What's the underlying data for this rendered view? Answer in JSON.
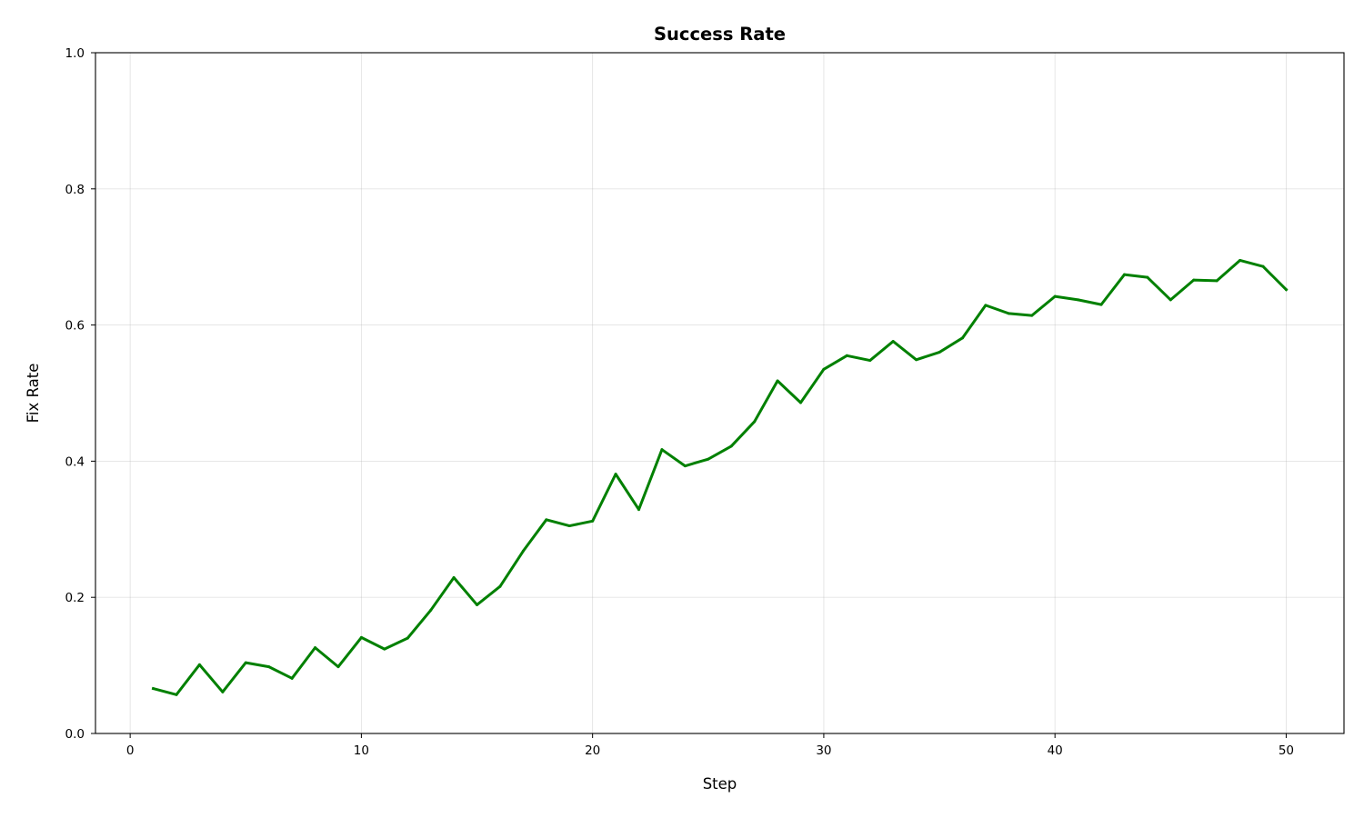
{
  "chart_data": {
    "type": "line",
    "title": "Success Rate",
    "xlabel": "Step",
    "ylabel": "Fix Rate",
    "xlim": [
      -1.5,
      52.5
    ],
    "ylim": [
      0.0,
      1.0
    ],
    "xticks": [
      0,
      10,
      20,
      30,
      40,
      50
    ],
    "xtick_labels": [
      "0",
      "10",
      "20",
      "30",
      "40",
      "50"
    ],
    "yticks": [
      0.0,
      0.2,
      0.4,
      0.6,
      0.8,
      1.0
    ],
    "ytick_labels": [
      "0.0",
      "0.2",
      "0.4",
      "0.6",
      "0.8",
      "1.0"
    ],
    "grid": true,
    "series": [
      {
        "color": "#008000",
        "x": [
          1,
          2,
          3,
          4,
          5,
          6,
          7,
          8,
          9,
          10,
          11,
          12,
          13,
          14,
          15,
          16,
          17,
          18,
          19,
          20,
          21,
          22,
          23,
          24,
          25,
          26,
          27,
          28,
          29,
          30,
          31,
          32,
          33,
          34,
          35,
          36,
          37,
          38,
          39,
          40,
          41,
          42,
          43,
          44,
          45,
          46,
          47,
          48,
          49,
          50
        ],
        "y": [
          0.066,
          0.057,
          0.101,
          0.061,
          0.104,
          0.098,
          0.081,
          0.126,
          0.098,
          0.141,
          0.124,
          0.14,
          0.181,
          0.229,
          0.189,
          0.216,
          0.268,
          0.314,
          0.305,
          0.312,
          0.381,
          0.329,
          0.417,
          0.393,
          0.403,
          0.422,
          0.458,
          0.518,
          0.486,
          0.535,
          0.555,
          0.548,
          0.576,
          0.549,
          0.56,
          0.581,
          0.629,
          0.617,
          0.614,
          0.642,
          0.637,
          0.63,
          0.674,
          0.67,
          0.637,
          0.666,
          0.665,
          0.695,
          0.686,
          0.652
        ]
      }
    ]
  }
}
